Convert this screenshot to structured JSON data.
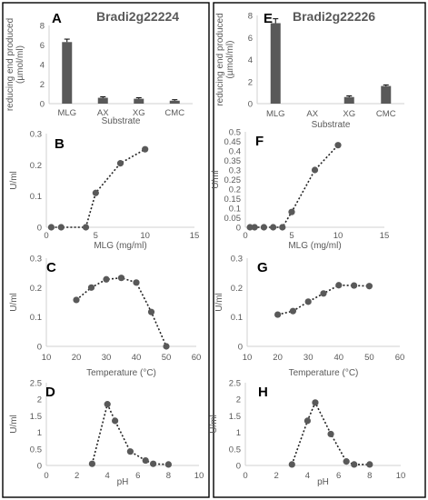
{
  "chart_data": [
    {
      "id": "A",
      "type": "bar",
      "title": "Bradi2g22224",
      "xlabel": "Substrate",
      "ylabel": "reducing end produced (µmol/ml)",
      "ylim": [
        0,
        8
      ],
      "yticks": [
        0,
        2,
        4,
        6,
        8
      ],
      "categories": [
        "MLG",
        "AX",
        "XG",
        "CMC"
      ],
      "values": [
        6.3,
        0.6,
        0.5,
        0.3
      ],
      "errors": [
        0.3,
        0.1,
        0.1,
        0.1
      ],
      "grid": false
    },
    {
      "id": "B",
      "type": "scatter",
      "xlabel": "MLG (mg/ml)",
      "ylabel": "U/ml",
      "xlim": [
        0,
        15
      ],
      "xticks": [
        0,
        5,
        10,
        15
      ],
      "ylim": [
        0,
        0.3
      ],
      "yticks": [
        0,
        0.1,
        0.2,
        0.3
      ],
      "points": [
        [
          0.5,
          0
        ],
        [
          1.5,
          0
        ],
        [
          4,
          0
        ],
        [
          5,
          0.11
        ],
        [
          7.5,
          0.205
        ],
        [
          10,
          0.25
        ]
      ],
      "dotted_line": true
    },
    {
      "id": "C",
      "type": "scatter",
      "xlabel": "Temperature (°C)",
      "ylabel": "U/ml",
      "xlim": [
        10,
        60
      ],
      "xticks": [
        10,
        20,
        30,
        40,
        50,
        60
      ],
      "ylim": [
        0,
        0.3
      ],
      "yticks": [
        0,
        0.1,
        0.2,
        0.3
      ],
      "points": [
        [
          20,
          0.158
        ],
        [
          25,
          0.2
        ],
        [
          30,
          0.228
        ],
        [
          35,
          0.233
        ],
        [
          40,
          0.217
        ],
        [
          45,
          0.117
        ],
        [
          50,
          0
        ]
      ],
      "dotted_line": true
    },
    {
      "id": "D",
      "type": "scatter",
      "xlabel": "pH",
      "ylabel": "U/ml",
      "xlim": [
        0,
        10
      ],
      "xticks": [
        0,
        2,
        4,
        6,
        8,
        10
      ],
      "ylim": [
        0,
        2.5
      ],
      "yticks": [
        0,
        0.5,
        1,
        1.5,
        2,
        2.5
      ],
      "points": [
        [
          3,
          0.05
        ],
        [
          4,
          1.85
        ],
        [
          4.5,
          1.35
        ],
        [
          5.5,
          0.42
        ],
        [
          6.5,
          0.15
        ],
        [
          7,
          0.05
        ],
        [
          8,
          0.03
        ]
      ],
      "dotted_line": true
    },
    {
      "id": "E",
      "type": "bar",
      "title": "Bradi2g22226",
      "xlabel": "Substrate",
      "ylabel": "reducing end produced (µmol/ml)",
      "ylim": [
        0,
        8
      ],
      "yticks": [
        0,
        2,
        4,
        6,
        8
      ],
      "categories": [
        "MLG",
        "AX",
        "XG",
        "CMC"
      ],
      "values": [
        7.3,
        0,
        0.6,
        1.6
      ],
      "errors": [
        0.4,
        0,
        0.1,
        0.1
      ],
      "grid": false
    },
    {
      "id": "F",
      "type": "scatter",
      "xlabel": "MLG (mg/ml)",
      "ylabel": "U/ml",
      "xlim": [
        0,
        15
      ],
      "xticks": [
        0,
        5,
        10,
        15
      ],
      "ylim": [
        0,
        0.5
      ],
      "yticks": [
        0,
        0.05,
        0.1,
        0.15,
        0.2,
        0.25,
        0.3,
        0.35,
        0.4,
        0.45,
        0.5
      ],
      "points": [
        [
          0.5,
          0
        ],
        [
          1,
          0
        ],
        [
          2,
          0
        ],
        [
          3,
          0
        ],
        [
          4,
          0
        ],
        [
          5,
          0.08
        ],
        [
          7.5,
          0.3
        ],
        [
          10,
          0.43
        ]
      ],
      "dotted_line": true
    },
    {
      "id": "G",
      "type": "scatter",
      "xlabel": "Temperature (°C)",
      "ylabel": "U/ml",
      "xlim": [
        10,
        60
      ],
      "xticks": [
        10,
        20,
        30,
        40,
        50,
        60
      ],
      "ylim": [
        0,
        0.3
      ],
      "yticks": [
        0,
        0.1,
        0.2,
        0.3
      ],
      "points": [
        [
          20,
          0.108
        ],
        [
          25,
          0.12
        ],
        [
          30,
          0.152
        ],
        [
          35,
          0.18
        ],
        [
          40,
          0.208
        ],
        [
          45,
          0.207
        ],
        [
          50,
          0.205
        ]
      ],
      "dotted_line": true
    },
    {
      "id": "H",
      "type": "scatter",
      "xlabel": "pH",
      "ylabel": "U/ml",
      "xlim": [
        0,
        10
      ],
      "xticks": [
        0,
        2,
        4,
        6,
        8,
        10
      ],
      "ylim": [
        0,
        2.5
      ],
      "yticks": [
        0,
        0.5,
        1,
        1.5,
        2,
        2.5
      ],
      "points": [
        [
          3,
          0.03
        ],
        [
          4,
          1.35
        ],
        [
          4.5,
          1.9
        ],
        [
          5.5,
          0.95
        ],
        [
          6.5,
          0.12
        ],
        [
          7,
          0.03
        ],
        [
          8,
          0.03
        ]
      ],
      "dotted_line": true
    }
  ],
  "colors": {
    "bar": "#595959",
    "marker": "#595959",
    "trendline": "#222222",
    "axis": "#d0d0d0",
    "text": "#595959",
    "frame": "#000000"
  }
}
